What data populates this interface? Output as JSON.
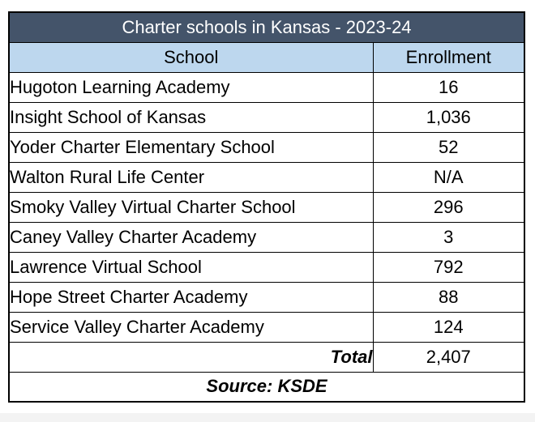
{
  "table": {
    "title": "Charter schools in Kansas - 2023-24",
    "headers": [
      "School",
      "Enrollment"
    ],
    "rows": [
      {
        "school": "Hugoton Learning Academy",
        "enrollment": "16"
      },
      {
        "school": "Insight School of Kansas",
        "enrollment": "1,036"
      },
      {
        "school": "Yoder Charter Elementary School",
        "enrollment": "52"
      },
      {
        "school": "Walton Rural Life Center",
        "enrollment": "N/A"
      },
      {
        "school": "Smoky Valley Virtual Charter School",
        "enrollment": "296"
      },
      {
        "school": "Caney Valley Charter Academy",
        "enrollment": "3"
      },
      {
        "school": "Lawrence Virtual School",
        "enrollment": "792"
      },
      {
        "school": "Hope Street Charter Academy",
        "enrollment": "88"
      },
      {
        "school": "Service Valley Charter Academy",
        "enrollment": "124"
      }
    ],
    "total_label": "Total",
    "total_value": "2,407",
    "source": "Source: KSDE",
    "colors": {
      "title_bg": "#44546a",
      "header_bg": "#bdd7ee"
    }
  },
  "chart_data": {
    "type": "table",
    "title": "Charter schools in Kansas - 2023-24",
    "columns": [
      "School",
      "Enrollment"
    ],
    "rows": [
      [
        "Hugoton Learning Academy",
        "16"
      ],
      [
        "Insight School of Kansas",
        "1,036"
      ],
      [
        "Yoder Charter Elementary School",
        "52"
      ],
      [
        "Walton Rural Life Center",
        "N/A"
      ],
      [
        "Smoky Valley Virtual Charter School",
        "296"
      ],
      [
        "Caney Valley Charter Academy",
        "3"
      ],
      [
        "Lawrence Virtual School",
        "792"
      ],
      [
        "Hope Street Charter Academy",
        "88"
      ],
      [
        "Service Valley Charter Academy",
        "124"
      ]
    ],
    "total": [
      "Total",
      "2,407"
    ],
    "source": "Source: KSDE"
  }
}
